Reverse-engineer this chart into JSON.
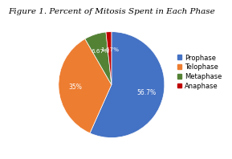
{
  "title": "Figure 1. Percent of Mitosis Spent in Each Phase",
  "labels": [
    "Prophase",
    "Telophase",
    "Metaphase",
    "Anaphase"
  ],
  "values": [
    56.7,
    35.0,
    6.67,
    1.67
  ],
  "colors": [
    "#4472C4",
    "#ED7D31",
    "#548235",
    "#C00000"
  ],
  "autopct_labels": [
    "56.7%",
    "35%",
    "6.67%",
    "1.67%"
  ],
  "startangle": 90,
  "title_fontsize": 7.5,
  "legend_fontsize": 6,
  "background_color": "#ffffff",
  "pct_label_colors": [
    "white",
    "white",
    "white",
    "white"
  ]
}
